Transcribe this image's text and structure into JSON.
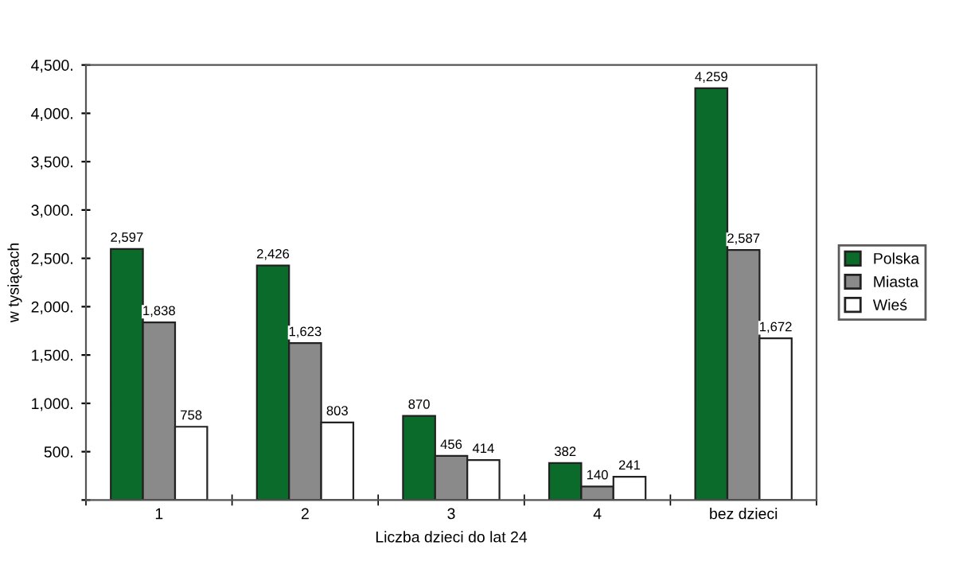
{
  "chart_data": {
    "type": "bar",
    "xlabel": "Liczba dzieci do lat 24",
    "ylabel": "w tysiącach",
    "categories": [
      "1",
      "2",
      "3",
      "4",
      "bez dzieci"
    ],
    "series": [
      {
        "name": "Polska",
        "color": "#0b6b2a",
        "values": [
          2597,
          2426,
          870,
          382,
          4259
        ],
        "value_labels": [
          "2,597",
          "2,426",
          "870",
          "382",
          "4,259"
        ]
      },
      {
        "name": "Miasta",
        "color": "#8a8a8a",
        "values": [
          1838,
          1623,
          456,
          140,
          2587
        ],
        "value_labels": [
          "1,838",
          "1,623",
          "456",
          "140",
          "2,587"
        ]
      },
      {
        "name": "Wieś",
        "color": "#ffffff",
        "values": [
          758,
          803,
          414,
          241,
          1672
        ],
        "value_labels": [
          "758",
          "803",
          "414",
          "241",
          "1,672"
        ]
      }
    ],
    "ylim": [
      0,
      4500
    ],
    "yticks": [
      {
        "value": 0,
        "label": null
      },
      {
        "value": 500,
        "label": "500."
      },
      {
        "value": 1000,
        "label": "1,000."
      },
      {
        "value": 1500,
        "label": "1,500."
      },
      {
        "value": 2000,
        "label": "2,000."
      },
      {
        "value": 2500,
        "label": "2,500."
      },
      {
        "value": 3000,
        "label": "3,000."
      },
      {
        "value": 3500,
        "label": "3,500."
      },
      {
        "value": 4000,
        "label": "4,000."
      },
      {
        "value": 4500,
        "label": "4,500."
      }
    ],
    "legend": "right",
    "grid": false
  }
}
